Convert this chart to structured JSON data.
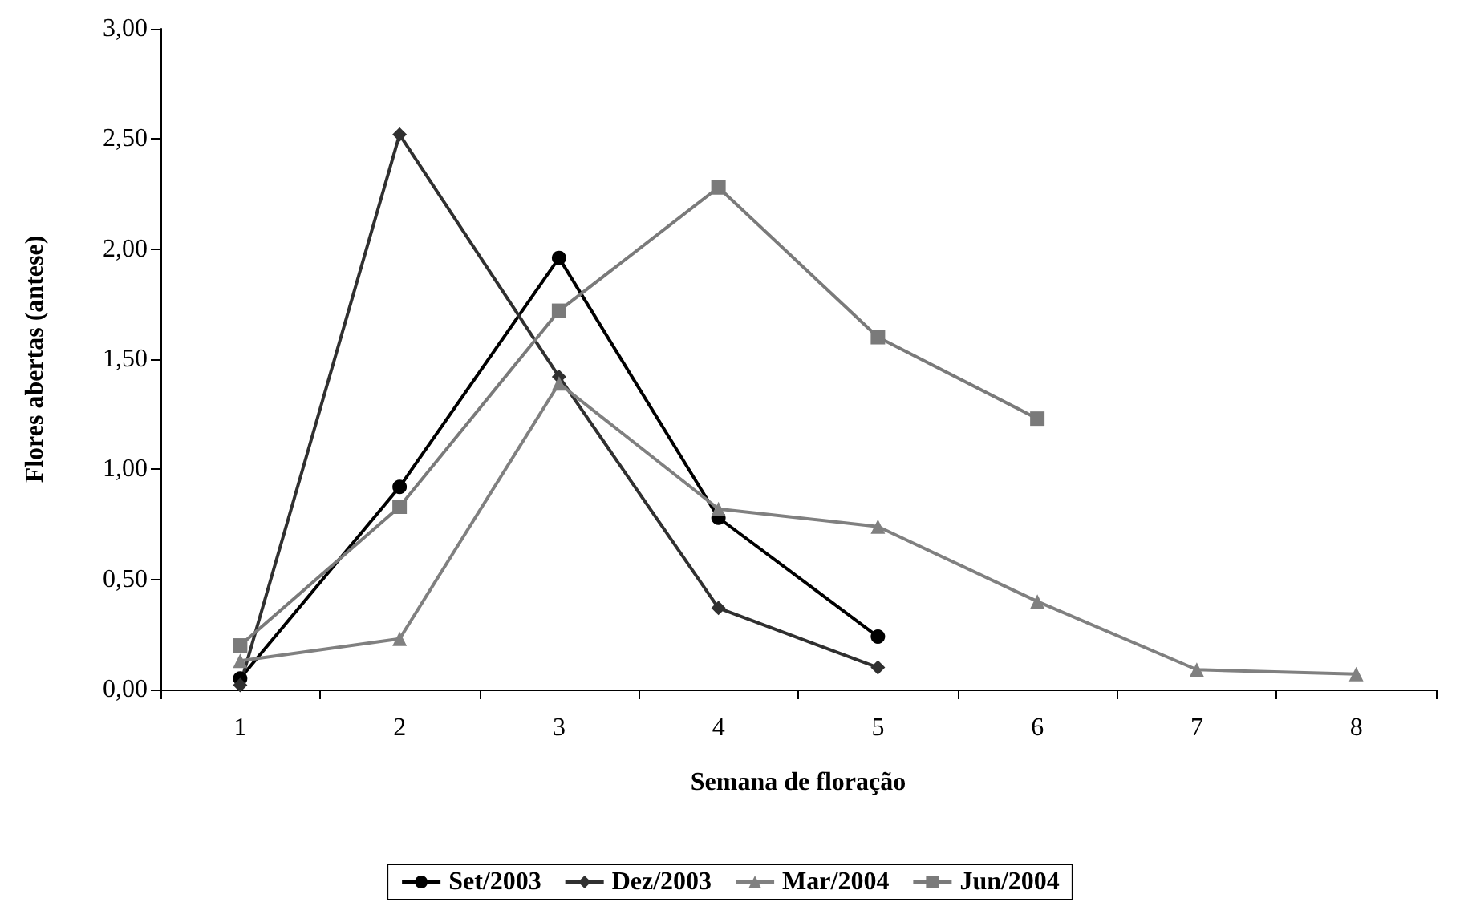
{
  "chart_data": {
    "type": "line",
    "xlabel": "Semana de floração",
    "ylabel": "Flores abertas (antese)",
    "categories": [
      "1",
      "2",
      "3",
      "4",
      "5",
      "6",
      "7",
      "8"
    ],
    "series": [
      {
        "name": "Set/2003",
        "color": "#000000",
        "marker": "circle",
        "values": [
          0.05,
          0.92,
          1.96,
          0.78,
          0.24,
          null,
          null,
          null
        ]
      },
      {
        "name": "Dez/2003",
        "color": "#303030",
        "marker": "diamond",
        "values": [
          0.02,
          2.52,
          1.42,
          0.37,
          0.1,
          null,
          null,
          null
        ]
      },
      {
        "name": "Mar/2004",
        "color": "#808080",
        "marker": "triangle",
        "values": [
          0.13,
          0.23,
          1.39,
          0.82,
          0.74,
          0.4,
          0.09,
          0.07
        ]
      },
      {
        "name": "Jun/2004",
        "color": "#7a7a7a",
        "marker": "square",
        "values": [
          0.2,
          0.83,
          1.72,
          2.28,
          1.6,
          1.23,
          null,
          null
        ]
      }
    ],
    "ylim": [
      0,
      3
    ],
    "yticks": [
      {
        "value": 0,
        "label": "0,00"
      },
      {
        "value": 0.5,
        "label": "0,50"
      },
      {
        "value": 1,
        "label": "1,00"
      },
      {
        "value": 1.5,
        "label": "1,50"
      },
      {
        "value": 2,
        "label": "2,00"
      },
      {
        "value": 2.5,
        "label": "2,50"
      },
      {
        "value": 3,
        "label": "3,00"
      }
    ],
    "grid": false,
    "legend": "bottom",
    "line_style": "solid"
  }
}
